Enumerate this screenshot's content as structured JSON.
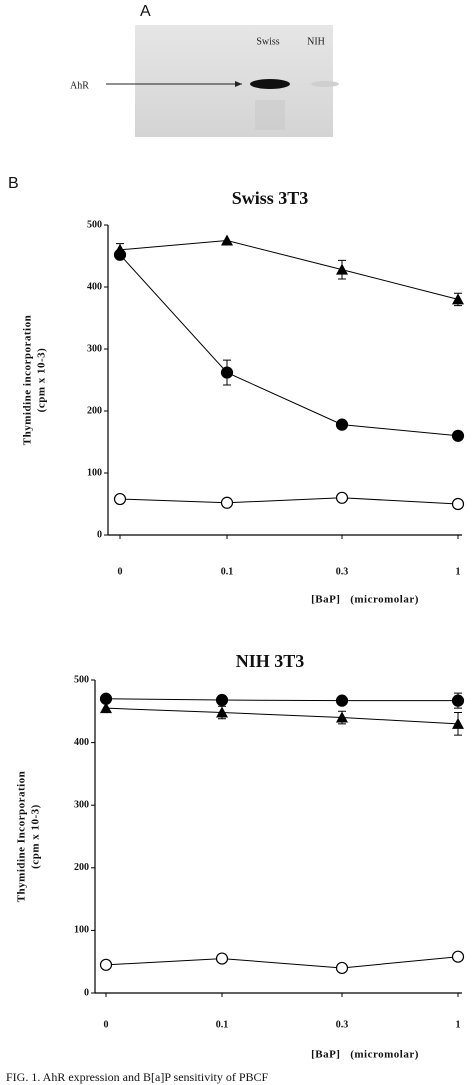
{
  "panel_labels": [
    "A",
    "B"
  ],
  "blot": {
    "target": "AhR",
    "lanes": [
      "Swiss",
      "NIH"
    ]
  },
  "caption": "FIG. 1. AhR expression and B[a]P sensitivity of PBCF",
  "chart_data": [
    {
      "type": "line",
      "title": "Swiss 3T3",
      "ylabel": [
        "Thymidine incorporation",
        "(cpm x 10-3)"
      ],
      "xlabel": "[BaP]   (micromolar)",
      "categories": [
        "0",
        "0.1",
        "0.3",
        "1"
      ],
      "ylim": [
        0,
        500
      ],
      "yticks": [
        0,
        100,
        200,
        300,
        400,
        500
      ],
      "series": [
        {
          "marker": "triangle",
          "color": "#000000",
          "values": [
            460,
            475,
            428,
            380
          ],
          "errors": [
            10,
            null,
            15,
            10
          ]
        },
        {
          "marker": "filled-circle",
          "color": "#000000",
          "values": [
            452,
            262,
            178,
            160
          ],
          "errors": [
            null,
            20,
            null,
            null
          ]
        },
        {
          "marker": "open-circle",
          "color": "#000000",
          "values": [
            58,
            52,
            60,
            50
          ],
          "errors": [
            null,
            null,
            null,
            null
          ]
        }
      ]
    },
    {
      "type": "line",
      "title": "NIH 3T3",
      "ylabel": [
        "Thymidine Incorporation",
        "(cpm x 10-3)"
      ],
      "xlabel": "[BaP]   (micromolar)",
      "categories": [
        "0",
        "0.1",
        "0.3",
        "1"
      ],
      "ylim": [
        0,
        500
      ],
      "yticks": [
        0,
        100,
        200,
        300,
        400,
        500
      ],
      "series": [
        {
          "marker": "filled-circle",
          "color": "#000000",
          "values": [
            470,
            468,
            467,
            467
          ],
          "errors": [
            null,
            null,
            null,
            12
          ]
        },
        {
          "marker": "triangle",
          "color": "#000000",
          "values": [
            455,
            448,
            440,
            430
          ],
          "errors": [
            null,
            10,
            10,
            18
          ]
        },
        {
          "marker": "open-circle",
          "color": "#000000",
          "values": [
            45,
            55,
            40,
            58
          ],
          "errors": [
            null,
            null,
            null,
            null
          ]
        }
      ]
    }
  ]
}
